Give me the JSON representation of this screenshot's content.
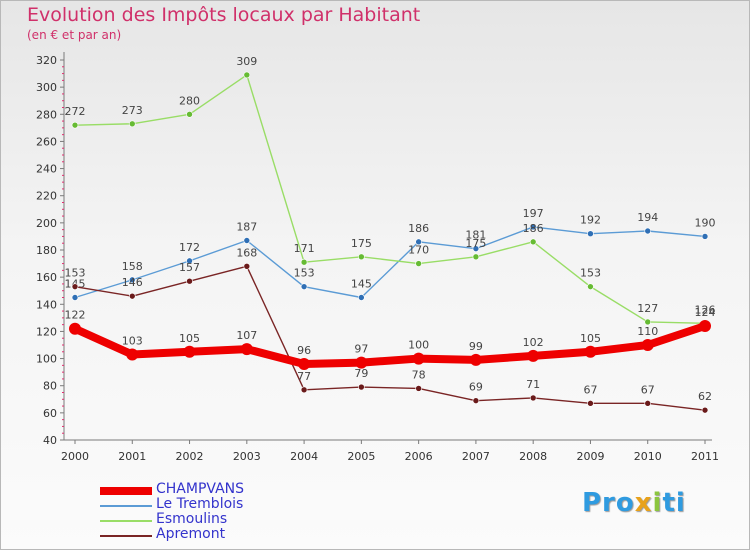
{
  "chart_data": {
    "type": "line",
    "title": "Evolution des Impôts locaux par Habitant",
    "subtitle": "(en € et par an)",
    "x": [
      "2000",
      "2001",
      "2002",
      "2003",
      "2004",
      "2005",
      "2006",
      "2007",
      "2008",
      "2009",
      "2010",
      "2011"
    ],
    "ylim": [
      40,
      320
    ],
    "yticks": [
      40,
      60,
      80,
      100,
      120,
      140,
      160,
      180,
      200,
      220,
      240,
      260,
      280,
      300,
      320
    ],
    "grid": false,
    "legend_position": "bottom-left",
    "series": [
      {
        "name": "Le Tremblois",
        "color": "#5b9bd5",
        "dot": "#2f6fb5",
        "width": 1.4,
        "values": [
          145,
          158,
          172,
          187,
          153,
          145,
          186,
          181,
          197,
          192,
          194,
          190
        ]
      },
      {
        "name": "Esmoulins",
        "color": "#99dd66",
        "dot": "#66bb33",
        "width": 1.4,
        "values": [
          272,
          273,
          280,
          309,
          171,
          175,
          170,
          175,
          186,
          153,
          127,
          126
        ]
      },
      {
        "name": "Apremont",
        "color": "#7a2525",
        "dot": "#6a1a1a",
        "width": 1.4,
        "values": [
          153,
          146,
          157,
          168,
          77,
          79,
          78,
          69,
          71,
          67,
          67,
          62
        ]
      },
      {
        "name": "CHAMPVANS",
        "color": "#ee0000",
        "dot": "#ee0000",
        "width": 8,
        "values": [
          122,
          103,
          105,
          107,
          96,
          97,
          100,
          99,
          102,
          105,
          110,
          124
        ]
      }
    ],
    "legend_order": [
      "CHAMPVANS",
      "Le Tremblois",
      "Esmoulins",
      "Apremont"
    ]
  },
  "brand": {
    "p1": "Pro",
    "x": "x",
    "i": "i",
    "p2": "ti"
  }
}
